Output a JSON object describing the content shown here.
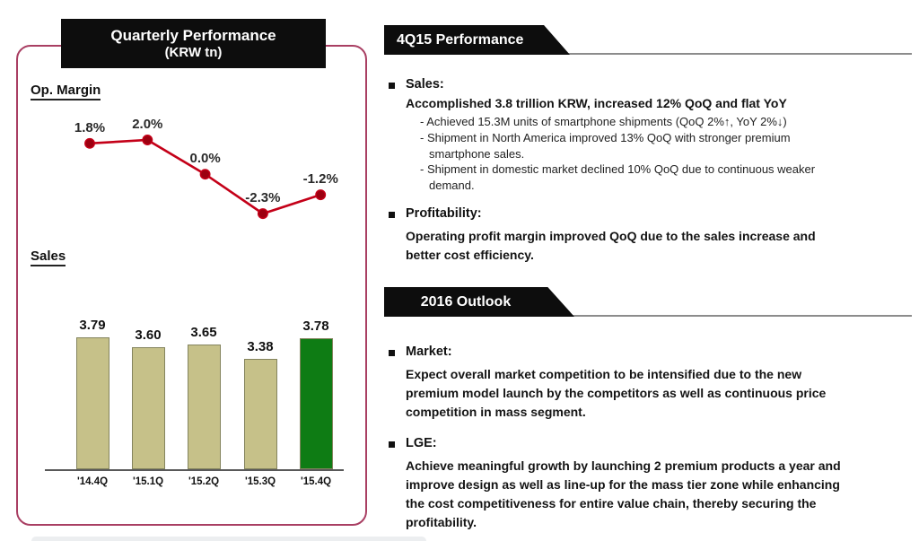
{
  "left_panel": {
    "title_line1": "Quarterly Performance",
    "title_line2": "(KRW tn)",
    "op_margin_label": "Op. Margin",
    "sales_label": "Sales"
  },
  "chart_data": [
    {
      "type": "line",
      "title": "Op. Margin",
      "categories": [
        "'14.4Q",
        "'15.1Q",
        "'15.2Q",
        "'15.3Q",
        "'15.4Q"
      ],
      "values": [
        1.8,
        2.0,
        0.0,
        -2.3,
        -1.2
      ],
      "point_labels": [
        "1.8%",
        "2.0%",
        "0.0%",
        "-2.3%",
        "-1.2%"
      ],
      "unit": "%",
      "ylim": [
        -3,
        3
      ],
      "grid": false,
      "line_color": "#c40018",
      "marker_color": "#9c0010"
    },
    {
      "type": "bar",
      "title": "Sales",
      "ylabel": "KRW tn",
      "categories": [
        "'14.4Q",
        "'15.1Q",
        "'15.2Q",
        "'15.3Q",
        "'15.4Q"
      ],
      "values": [
        3.79,
        3.6,
        3.65,
        3.38,
        3.78
      ],
      "value_labels": [
        "3.79",
        "3.60",
        "3.65",
        "3.38",
        "3.78"
      ],
      "bar_colors": [
        "#c6c189",
        "#c6c189",
        "#c6c189",
        "#c6c189",
        "#0e7c14"
      ],
      "grid": false
    }
  ],
  "right_panel": {
    "sections": [
      {
        "header": "4Q15 Performance",
        "items": [
          {
            "title": "Sales:",
            "body_lines": [
              "Accomplished 3.8 trillion KRW, increased 12% QoQ and flat YoY"
            ],
            "subitems": [
              [
                "- Achieved 15.3M units of smartphone shipments (QoQ 2%↑, YoY 2%↓)"
              ],
              [
                "- Shipment in North America improved 13% QoQ with stronger premium",
                "smartphone sales."
              ],
              [
                "- Shipment in domestic market declined 10% QoQ due to continuous weaker",
                "demand."
              ]
            ]
          },
          {
            "title": "Profitability:",
            "body_lines": [
              "Operating profit margin improved QoQ due to the sales increase and",
              "better cost efficiency."
            ]
          }
        ]
      },
      {
        "header": "2016 Outlook",
        "items": [
          {
            "title": "Market:",
            "body_lines": [
              "Expect overall market competition to be intensified due to the new",
              "premium model launch by the competitors as well as continuous price",
              "competition in mass segment."
            ]
          },
          {
            "title": "LGE:",
            "body_lines": [
              "Achieve meaningful growth by launching 2 premium products a year and",
              "improve design as well as line-up for the mass tier zone while enhancing",
              "the cost competitiveness for entire value chain, thereby securing the",
              "profitability."
            ]
          }
        ]
      }
    ]
  },
  "colors": {
    "panel_border": "#a93f63",
    "banner_bg": "#0d0d0d",
    "line_red": "#c40018",
    "bar_tan": "#c6c189",
    "bar_green": "#0e7c14",
    "rule_gray": "#8c8c8c"
  }
}
